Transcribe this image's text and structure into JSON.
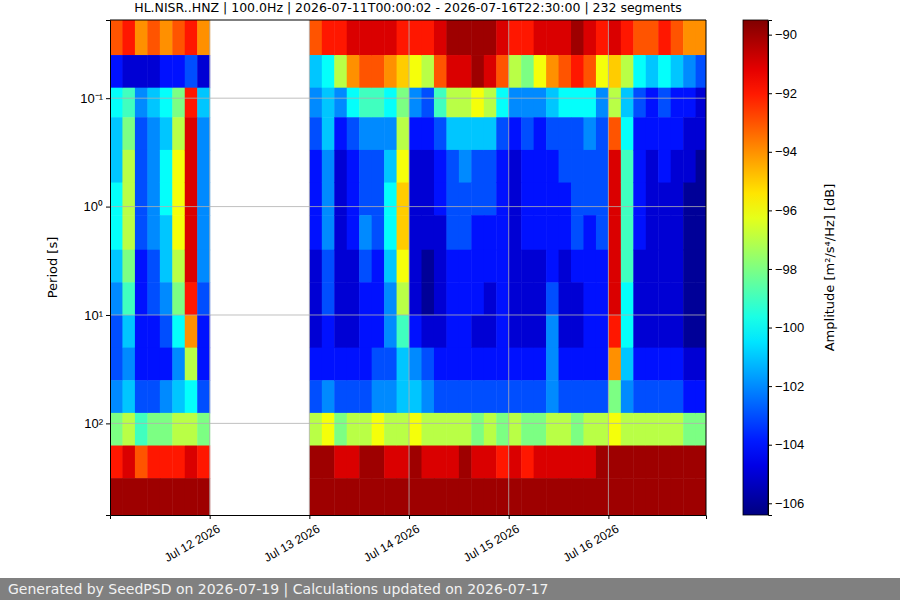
{
  "chart_data": {
    "type": "heatmap",
    "title": "HL.NISR..HNZ | 100.0Hz | 2026-07-11T00:00:02 - 2026-07-16T22:30:00 | 232 segments",
    "y_label": "Period [s]",
    "footer": "Generated by SeedPSD on 2026-07-19 | Calculations updated on 2026-07-17",
    "log": "y",
    "grid": true,
    "xlim": [
      "2026-07-11T00:00",
      "2026-07-16T23:30"
    ],
    "ylim": [
      0.019,
      700
    ],
    "xticks": [
      {
        "value": "2026-07-12T00:00",
        "label": "Jul 12 2026"
      },
      {
        "value": "2026-07-13T00:00",
        "label": "Jul 13 2026"
      },
      {
        "value": "2026-07-14T00:00",
        "label": "Jul 14 2026"
      },
      {
        "value": "2026-07-15T00:00",
        "label": "Jul 15 2026"
      },
      {
        "value": "2026-07-16T00:00",
        "label": "Jul 16 2026"
      }
    ],
    "yticks": [
      {
        "value": 0.1,
        "label": "10⁻¹"
      },
      {
        "value": 1,
        "label": "10⁰"
      },
      {
        "value": 10,
        "label": "10¹"
      },
      {
        "value": 100,
        "label": "10²"
      }
    ],
    "y_edges": [
      0.019,
      0.04,
      0.08,
      0.15,
      0.3,
      0.6,
      1.2,
      2.5,
      5,
      10,
      20,
      40,
      80,
      160,
      320,
      700
    ],
    "x": [
      "2026-07-11T00:00",
      "2026-07-11T03:00",
      "2026-07-11T06:00",
      "2026-07-11T09:00",
      "2026-07-11T12:00",
      "2026-07-11T15:00",
      "2026-07-11T18:00",
      "2026-07-11T21:00",
      "2026-07-12T00:00",
      "2026-07-13T00:00",
      "2026-07-13T03:00",
      "2026-07-13T06:00",
      "2026-07-13T09:00",
      "2026-07-13T12:00",
      "2026-07-13T15:00",
      "2026-07-13T18:00",
      "2026-07-13T21:00",
      "2026-07-14T00:00",
      "2026-07-14T03:00",
      "2026-07-14T06:00",
      "2026-07-14T09:00",
      "2026-07-14T12:00",
      "2026-07-14T15:00",
      "2026-07-14T18:00",
      "2026-07-14T21:00",
      "2026-07-15T00:00",
      "2026-07-15T03:00",
      "2026-07-15T06:00",
      "2026-07-15T09:00",
      "2026-07-15T12:00",
      "2026-07-15T15:00",
      "2026-07-15T18:00",
      "2026-07-15T21:00",
      "2026-07-16T00:00",
      "2026-07-16T03:00",
      "2026-07-16T06:00",
      "2026-07-16T09:00",
      "2026-07-16T12:00",
      "2026-07-16T15:00",
      "2026-07-16T18:00",
      "2026-07-16T21:00"
    ],
    "cells": [
      [
        -93,
        -104,
        -100,
        -101,
        -101,
        -100,
        -100,
        -101,
        -102,
        -103,
        -103,
        -102,
        -98,
        -92,
        -90
      ],
      [
        -92,
        -105,
        -99,
        -98,
        -97,
        -97,
        -97,
        -98,
        -99,
        -101,
        -102,
        -101,
        -97,
        -91,
        -90
      ],
      [
        -94,
        -105,
        -102,
        -103,
        -103,
        -103,
        -103,
        -104,
        -104,
        -104,
        -104,
        -103,
        -99,
        -93,
        -90
      ],
      [
        -93,
        -105,
        -101,
        -102,
        -102,
        -102,
        -102,
        -103,
        -103,
        -104,
        -104,
        -103,
        -98,
        -92,
        -90
      ],
      [
        -94,
        -104,
        -100,
        -101,
        -100,
        -100,
        -101,
        -101,
        -102,
        -103,
        -104,
        -102,
        -98,
        -92,
        -90
      ],
      [
        -93,
        -104,
        -98,
        -97,
        -96,
        -96,
        -96,
        -97,
        -98,
        -100,
        -102,
        -101,
        -97,
        -92,
        -90
      ],
      [
        -92,
        -103,
        -92,
        -91,
        -91,
        -91,
        -91,
        -91,
        -92,
        -94,
        -97,
        -100,
        -97,
        -91,
        -90
      ],
      [
        -94,
        -105,
        -101,
        -102,
        -102,
        -102,
        -102,
        -102,
        -103,
        -104,
        -104,
        -103,
        -98,
        -92,
        -90
      ],
      [
        null,
        null,
        null,
        null,
        null,
        null,
        null,
        null,
        null,
        null,
        null,
        null,
        null,
        null,
        null
      ],
      [
        -93,
        -101,
        -102,
        -103,
        -104,
        -104,
        -104,
        -105,
        -105,
        -105,
        -104,
        -103,
        -97,
        -90,
        -90
      ],
      [
        -92,
        -100,
        -101,
        -101,
        -102,
        -102,
        -102,
        -103,
        -103,
        -104,
        -104,
        -102,
        -96,
        -90,
        -90
      ],
      [
        -92,
        -97,
        -102,
        -104,
        -105,
        -105,
        -105,
        -105,
        -105,
        -105,
        -104,
        -103,
        -98,
        -91,
        -90
      ],
      [
        -91,
        -94,
        -100,
        -103,
        -104,
        -104,
        -104,
        -105,
        -105,
        -105,
        -104,
        -103,
        -97,
        -91,
        -90
      ],
      [
        -91,
        -93,
        -99,
        -102,
        -103,
        -103,
        -102,
        -103,
        -104,
        -104,
        -104,
        -103,
        -97,
        -90,
        -90
      ],
      [
        -91,
        -93,
        -99,
        -102,
        -103,
        -103,
        -103,
        -104,
        -104,
        -104,
        -103,
        -102,
        -96,
        -90,
        -90
      ],
      [
        -91,
        -94,
        -100,
        -102,
        -101,
        -100,
        -100,
        -101,
        -102,
        -102,
        -103,
        -102,
        -97,
        -91,
        -90
      ],
      [
        -92,
        -95,
        -98,
        -97,
        -96,
        -95,
        -95,
        -96,
        -97,
        -99,
        -101,
        -101,
        -97,
        -91,
        -90
      ],
      [
        -92,
        -96,
        -102,
        -104,
        -105,
        -105,
        -105,
        -105,
        -105,
        -104,
        -102,
        -101,
        -96,
        -90,
        -90
      ],
      [
        -92,
        -97,
        -103,
        -104,
        -105,
        -105,
        -105,
        -106,
        -106,
        -105,
        -103,
        -102,
        -97,
        -91,
        -90
      ],
      [
        -91,
        -93,
        -99,
        -103,
        -104,
        -104,
        -105,
        -105,
        -105,
        -105,
        -104,
        -103,
        -97,
        -91,
        -90
      ],
      [
        -90,
        -91,
        -97,
        -101,
        -103,
        -103,
        -103,
        -104,
        -104,
        -104,
        -104,
        -103,
        -97,
        -91,
        -90
      ],
      [
        -90,
        -91,
        -97,
        -101,
        -102,
        -103,
        -103,
        -104,
        -104,
        -104,
        -104,
        -103,
        -97,
        -90,
        -90
      ],
      [
        -90,
        -90,
        -96,
        -101,
        -103,
        -103,
        -104,
        -104,
        -104,
        -105,
        -104,
        -103,
        -98,
        -91,
        -90
      ],
      [
        -90,
        -91,
        -97,
        -101,
        -103,
        -103,
        -104,
        -104,
        -105,
        -105,
        -104,
        -103,
        -97,
        -91,
        -90
      ],
      [
        -91,
        -93,
        -100,
        -103,
        -104,
        -104,
        -104,
        -104,
        -104,
        -104,
        -104,
        -103,
        -98,
        -92,
        -90
      ],
      [
        -92,
        -97,
        -102,
        -104,
        -105,
        -105,
        -105,
        -105,
        -105,
        -105,
        -104,
        -103,
        -97,
        -91,
        -90
      ],
      [
        -92,
        -98,
        -102,
        -103,
        -104,
        -104,
        -104,
        -105,
        -105,
        -105,
        -104,
        -103,
        -98,
        -92,
        -90
      ],
      [
        -91,
        -96,
        -102,
        -104,
        -104,
        -104,
        -104,
        -105,
        -105,
        -105,
        -104,
        -103,
        -98,
        -91,
        -90
      ],
      [
        -91,
        -94,
        -101,
        -103,
        -104,
        -104,
        -104,
        -104,
        -103,
        -102,
        -102,
        -102,
        -97,
        -91,
        -90
      ],
      [
        -91,
        -93,
        -100,
        -103,
        -103,
        -104,
        -104,
        -105,
        -105,
        -105,
        -104,
        -103,
        -97,
        -91,
        -90
      ],
      [
        -90,
        -92,
        -100,
        -103,
        -103,
        -103,
        -103,
        -104,
        -105,
        -105,
        -104,
        -103,
        -98,
        -91,
        -90
      ],
      [
        -91,
        -93,
        -100,
        -102,
        -103,
        -103,
        -104,
        -104,
        -104,
        -104,
        -104,
        -103,
        -97,
        -91,
        -90
      ],
      [
        -92,
        -96,
        -102,
        -103,
        -103,
        -103,
        -103,
        -104,
        -104,
        -104,
        -104,
        -103,
        -97,
        -90,
        -90
      ],
      [
        -91,
        -95,
        -97,
        -93,
        -91,
        -91,
        -91,
        -91,
        -91,
        -92,
        -94,
        -98,
        -96,
        -90,
        -90
      ],
      [
        -92,
        -97,
        -101,
        -100,
        -99,
        -99,
        -99,
        -99,
        -100,
        -100,
        -101,
        -102,
        -97,
        -90,
        -90
      ],
      [
        -93,
        -100,
        -103,
        -104,
        -104,
        -104,
        -104,
        -105,
        -105,
        -105,
        -104,
        -103,
        -97,
        -90,
        -90
      ],
      [
        -93,
        -101,
        -104,
        -104,
        -105,
        -105,
        -105,
        -105,
        -105,
        -105,
        -104,
        -103,
        -97,
        -90,
        -90
      ],
      [
        -92,
        -100,
        -103,
        -104,
        -104,
        -105,
        -105,
        -105,
        -105,
        -105,
        -104,
        -103,
        -97,
        -90,
        -90
      ],
      [
        -93,
        -101,
        -104,
        -104,
        -105,
        -105,
        -105,
        -105,
        -105,
        -105,
        -104,
        -103,
        -97,
        -90,
        -90
      ],
      [
        -94,
        -102,
        -104,
        -105,
        -105,
        -106,
        -106,
        -106,
        -106,
        -106,
        -105,
        -104,
        -98,
        -90,
        -90
      ],
      [
        -94,
        -103,
        -105,
        -105,
        -106,
        -106,
        -106,
        -106,
        -106,
        -106,
        -105,
        -104,
        -98,
        -90,
        -90
      ]
    ],
    "colorbar": {
      "label": "Amplitude [m²/s⁴/Hz] [dB]",
      "range": [
        -106.4,
        -89.5
      ],
      "ticks": [
        {
          "value": -106,
          "label": "−106"
        },
        {
          "value": -104,
          "label": "−104"
        },
        {
          "value": -102,
          "label": "−102"
        },
        {
          "value": -100,
          "label": "−100"
        },
        {
          "value": -98,
          "label": "−98"
        },
        {
          "value": -96,
          "label": "−96"
        },
        {
          "value": -94,
          "label": "−94"
        },
        {
          "value": -92,
          "label": "−92"
        },
        {
          "value": -90,
          "label": "−90"
        }
      ]
    }
  }
}
